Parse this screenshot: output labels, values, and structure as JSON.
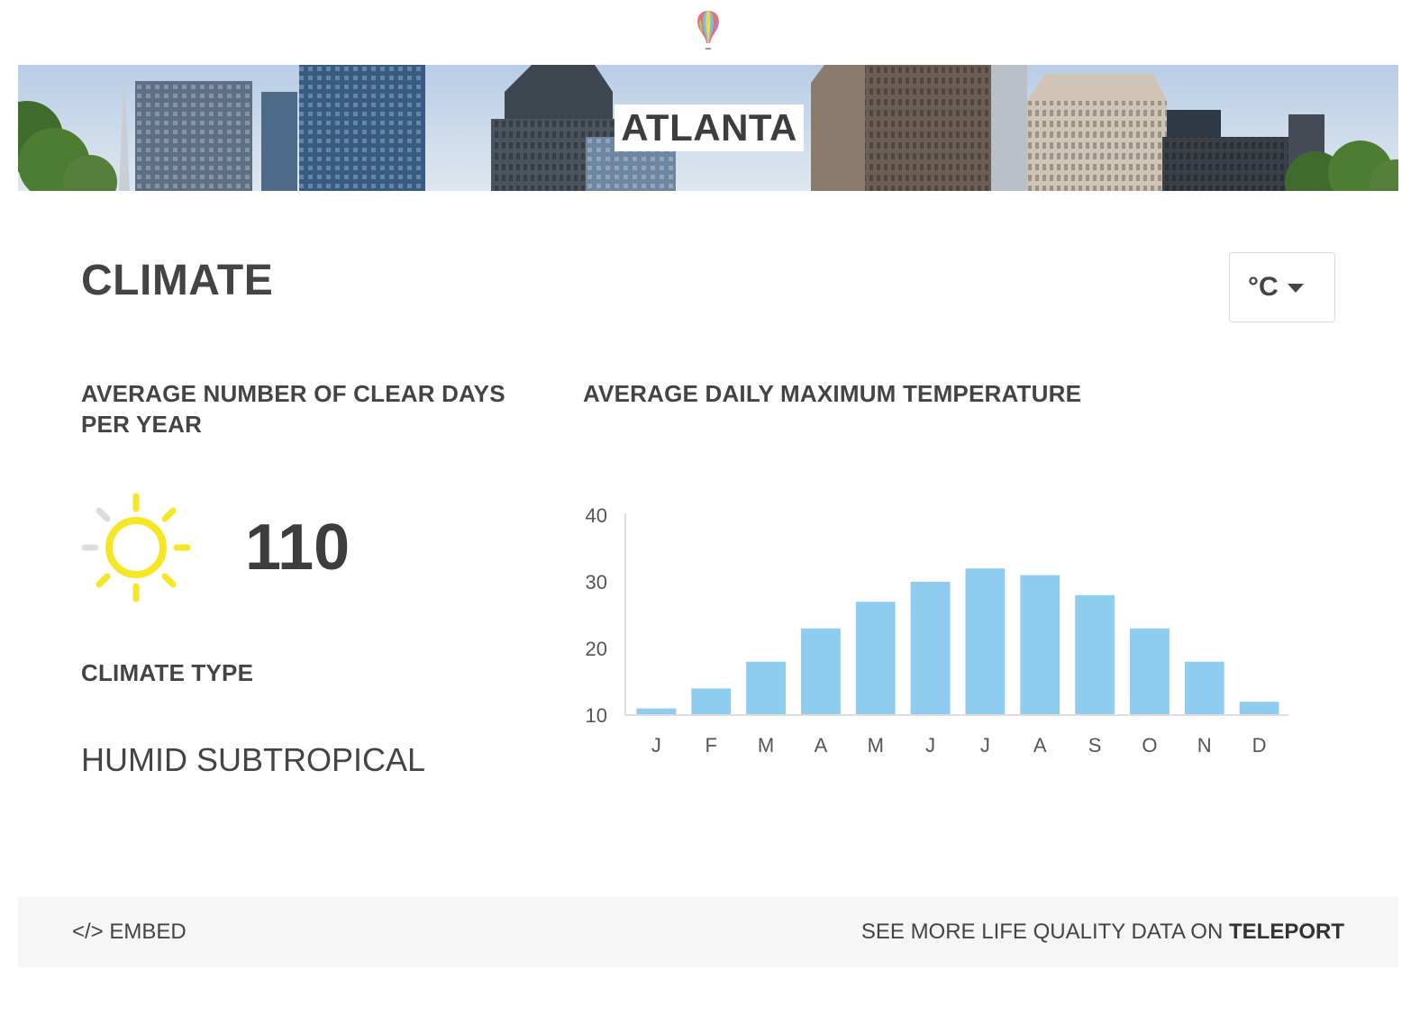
{
  "header": {
    "logo_icon": "balloon-icon",
    "city_name": "ATLANTA"
  },
  "section": {
    "title": "CLIMATE"
  },
  "unit_selector": {
    "value": "°C",
    "icon": "caret-down-icon"
  },
  "clear_days": {
    "label": "AVERAGE NUMBER OF CLEAR DAYS PER YEAR",
    "value": "110",
    "icon": "sun-icon",
    "color": "#f5e626"
  },
  "climate_type": {
    "label": "CLIMATE TYPE",
    "value": "HUMID SUBTROPICAL"
  },
  "temperature": {
    "label": "AVERAGE DAILY MAXIMUM TEMPERATURE"
  },
  "chart_data": {
    "type": "bar",
    "title": "AVERAGE DAILY MAXIMUM TEMPERATURE",
    "categories": [
      "J",
      "F",
      "M",
      "A",
      "M",
      "J",
      "J",
      "A",
      "S",
      "O",
      "N",
      "D"
    ],
    "values": [
      11,
      14,
      18,
      23,
      27,
      30,
      32,
      31,
      28,
      23,
      18,
      12
    ],
    "ylim": [
      10,
      40
    ],
    "yticks": [
      "10",
      "20",
      "30",
      "40"
    ],
    "grid": false,
    "bar_color": "#8ecdf0"
  },
  "footer": {
    "embed_label": "</> EMBED",
    "more_prefix": "SEE MORE LIFE QUALITY DATA ON",
    "more_brand": "TELEPORT"
  }
}
